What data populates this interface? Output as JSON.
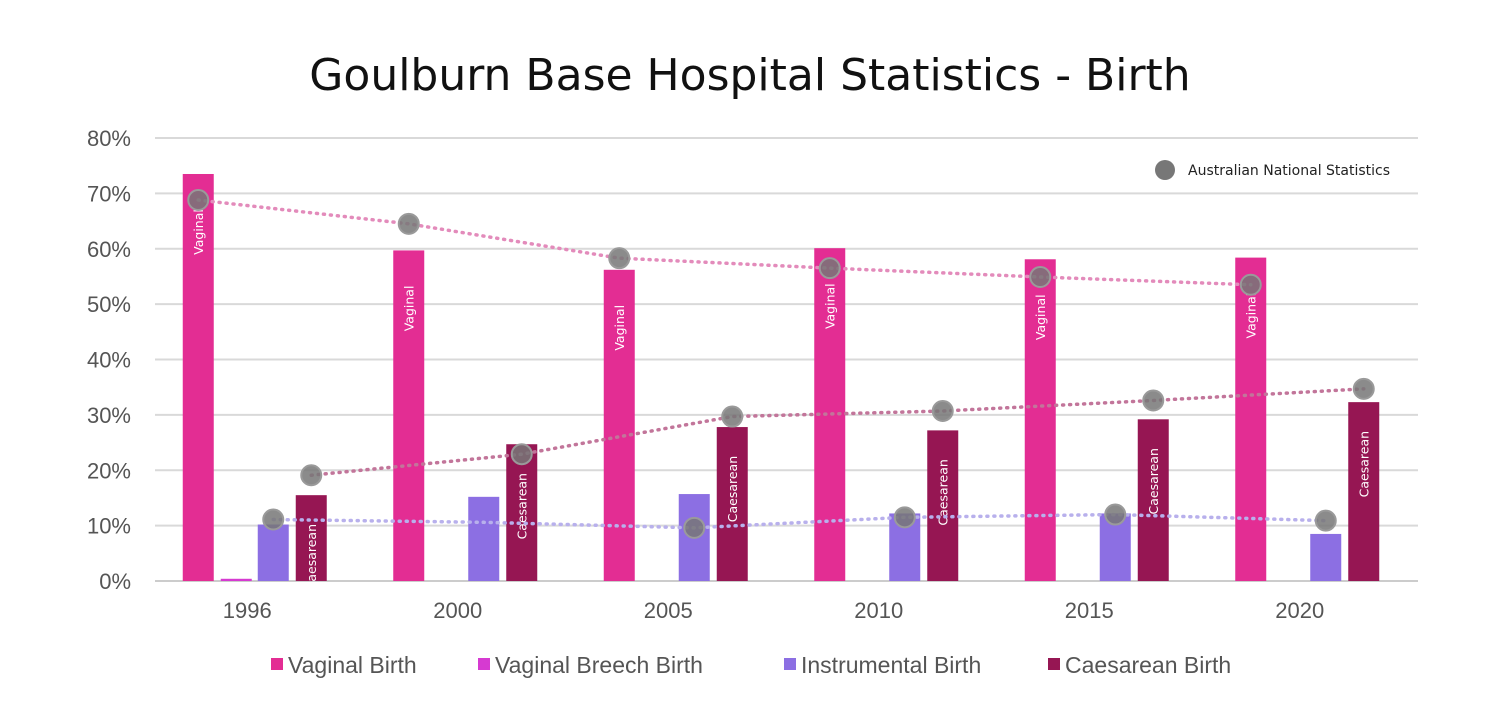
{
  "chart_data": {
    "type": "bar",
    "title": "Goulburn Base Hospital Statistics  - Birth",
    "categories": [
      "1996",
      "2000",
      "2005",
      "2010",
      "2015",
      "2020"
    ],
    "y_ticks": [
      "0%",
      "10%",
      "20%",
      "30%",
      "40%",
      "50%",
      "60%",
      "70%",
      "80%"
    ],
    "ylim": [
      0,
      80
    ],
    "grid": true,
    "series": [
      {
        "name": "Vaginal Birth",
        "color": "#e32d93",
        "bar_label": "Vaginal",
        "values": [
          73.5,
          59.7,
          56.2,
          60.1,
          58.1,
          58.4
        ]
      },
      {
        "name": "Vaginal Breech Birth",
        "color": "#d63ad1",
        "bar_label": "",
        "values": [
          0.4,
          0,
          0,
          0,
          0,
          0
        ]
      },
      {
        "name": "Instrumental Birth",
        "color": "#8c6fe3",
        "bar_label": "",
        "values": [
          10.2,
          15.2,
          15.7,
          12.2,
          12.2,
          8.5
        ]
      },
      {
        "name": "Caesarean Birth",
        "color": "#961653",
        "bar_label": "Caesarean",
        "values": [
          15.5,
          24.7,
          27.8,
          27.2,
          29.2,
          32.3
        ]
      }
    ],
    "national": {
      "label": "Australian National Statistics",
      "marker_color": "#777777",
      "vaginal": [
        68.8,
        64.5,
        58.3,
        56.5,
        54.9,
        53.5
      ],
      "caesarean": [
        19.1,
        22.9,
        29.7,
        30.7,
        32.6,
        34.7
      ],
      "instrumental": [
        11.1,
        null,
        9.6,
        11.5,
        12.0,
        10.9
      ],
      "vaginal_trend": [
        68.8,
        64.5,
        58.3,
        56.5,
        54.9,
        53.5
      ],
      "caesarean_trend": [
        19.1,
        22.9,
        29.7,
        30.7,
        32.6,
        34.7
      ],
      "instrumental_trend": [
        11.1,
        10.6,
        9.6,
        11.5,
        12.0,
        10.9
      ],
      "vaginal_trend_color": "#e38bbb",
      "caesarean_trend_color": "#c2759a",
      "instrumental_trend_color": "#b8b0ec"
    },
    "legend_position": "bottom"
  }
}
